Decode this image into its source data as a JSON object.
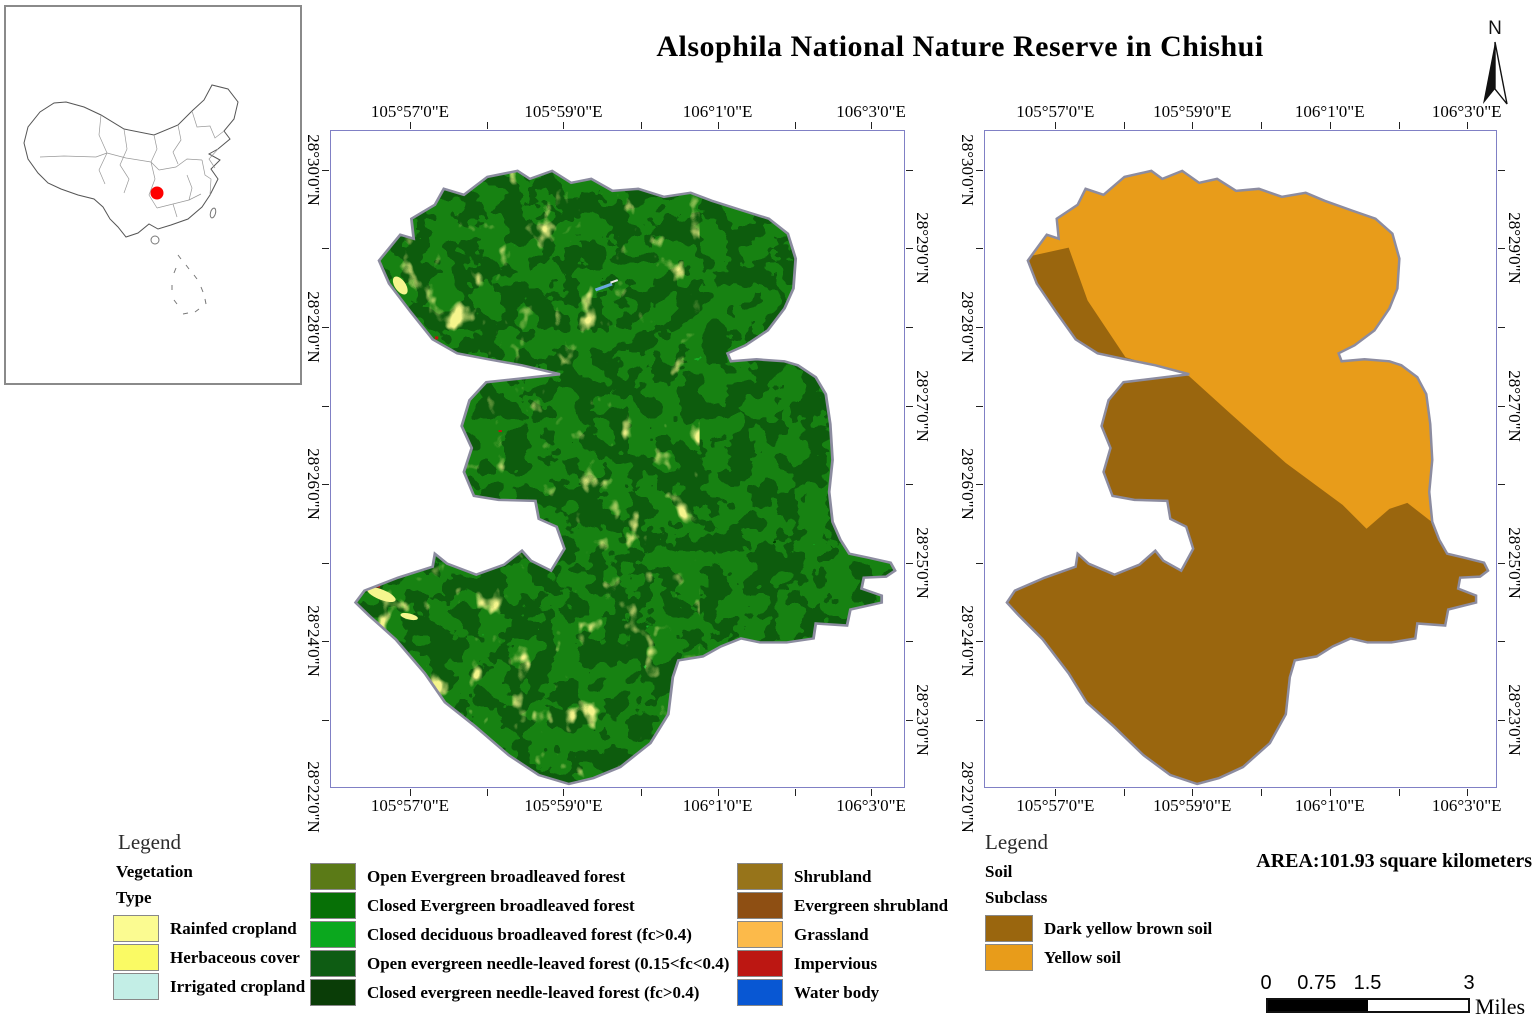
{
  "title": "Alsophila National Nature Reserve in Chishui",
  "north_arrow": {
    "label": "N"
  },
  "axes": {
    "lon_labels": [
      "105°57'0\"E",
      "105°59'0\"E",
      "106°1'0\"E",
      "106°3'0\"E"
    ],
    "lat_labels_left": [
      "28°30'0\"N",
      "28°28'0\"N",
      "28°26'0\"N",
      "28°24'0\"N",
      "28°22'0\"N"
    ],
    "lat_labels_right": [
      "28°29'0\"N",
      "28°27'0\"N",
      "28°25'0\"N",
      "28°23'0\"N"
    ]
  },
  "vegetation_legend": {
    "title": "Legend",
    "heading_lines": [
      "Vegetation",
      "Type"
    ],
    "items": [
      {
        "label": "Rainfed cropland",
        "color": "#FBFB91"
      },
      {
        "label": "Herbaceous cover",
        "color": "#FAFA64"
      },
      {
        "label": "Irrigated cropland",
        "color": "#C3EEE6"
      },
      {
        "label": "Open Evergreen broadleaved forest",
        "color": "#5B7A17"
      },
      {
        "label": "Closed Evergreen broadleaved forest",
        "color": "#077006"
      },
      {
        "label": "Closed deciduous broadleaved forest (fc>0.4)",
        "color": "#0BA81E"
      },
      {
        "label": "Open evergreen needle-leaved forest (0.15<fc<0.4)",
        "color": "#0E5C13"
      },
      {
        "label": "Closed evergreen needle-leaved forest (fc>0.4)",
        "color": "#0A3D07"
      },
      {
        "label": "Shrubland",
        "color": "#97741A"
      },
      {
        "label": "Evergreen shrubland",
        "color": "#8E4F13"
      },
      {
        "label": "Grassland",
        "color": "#FCBA4A"
      },
      {
        "label": "Impervious",
        "color": "#BC1712"
      },
      {
        "label": "Water body",
        "color": "#0857D3"
      }
    ]
  },
  "soil_legend": {
    "title": "Legend",
    "heading_lines": [
      "Soil",
      "Subclass"
    ],
    "items": [
      {
        "label": "Dark yellow brown soil",
        "color": "#9A660E"
      },
      {
        "label": "Yellow soil",
        "color": "#E89C1A"
      }
    ]
  },
  "area_text": "AREA:101.93 square kilometers",
  "scale_bar": {
    "ticks": [
      "0",
      "0.75",
      "1.5",
      "3"
    ],
    "unit": "Miles"
  },
  "map_colors": {
    "yellow_soil": "#E89C1A",
    "dark_yellow_brown_soil": "#9A660E",
    "reserve_boundary": "#8C8CA0",
    "frame_border": "#8080C5",
    "locator_dot": "#FE0000"
  }
}
